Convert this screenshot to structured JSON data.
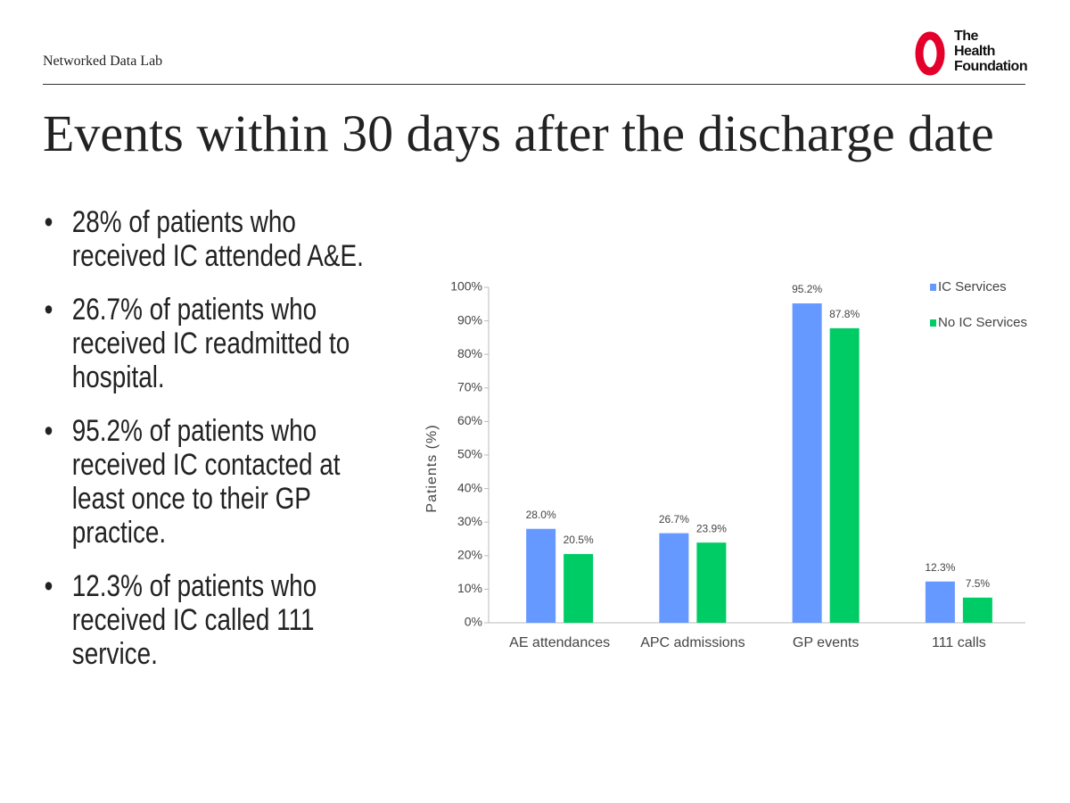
{
  "header": {
    "lab": "Networked Data Lab",
    "logo": [
      "The",
      "Health",
      "Foundation"
    ]
  },
  "title": "Events within 30 days after the discharge date",
  "bullets": [
    "28% of patients who received IC attended A&E.",
    "26.7% of patients who received IC readmitted to hospital.",
    "95.2% of patients who received IC contacted at least once to their GP practice.",
    "12.3% of patients who received IC called 111 service."
  ],
  "chart_data": {
    "type": "bar",
    "y_label": "Patients (%)",
    "categories": [
      "AE attendances",
      "APC admissions",
      "GP events",
      "111 calls"
    ],
    "series": [
      {
        "name": "IC Services",
        "color": "#6699ff",
        "values": [
          28.0,
          26.7,
          95.2,
          12.3
        ],
        "value_labels": [
          "28.0%",
          "26.7%",
          "95.2%",
          "12.3%"
        ]
      },
      {
        "name": "No IC Services",
        "color": "#00cc66",
        "values": [
          20.5,
          23.9,
          87.8,
          7.5
        ],
        "value_labels": [
          "20.5%",
          "23.9%",
          "87.8%",
          "7.5%"
        ]
      }
    ],
    "ylim": [
      0,
      100
    ],
    "yticks": [
      {
        "value": 0,
        "label": "0%"
      },
      {
        "value": 10,
        "label": "10%"
      },
      {
        "value": 20,
        "label": "20%"
      },
      {
        "value": 30,
        "label": "30%"
      },
      {
        "value": 40,
        "label": "40%"
      },
      {
        "value": 50,
        "label": "50%"
      },
      {
        "value": 60,
        "label": "60%"
      },
      {
        "value": 70,
        "label": "70%"
      },
      {
        "value": 80,
        "label": "80%"
      },
      {
        "value": 90,
        "label": "90%"
      },
      {
        "value": 100,
        "label": "100%"
      }
    ],
    "grid": false,
    "legend": "top-right"
  }
}
